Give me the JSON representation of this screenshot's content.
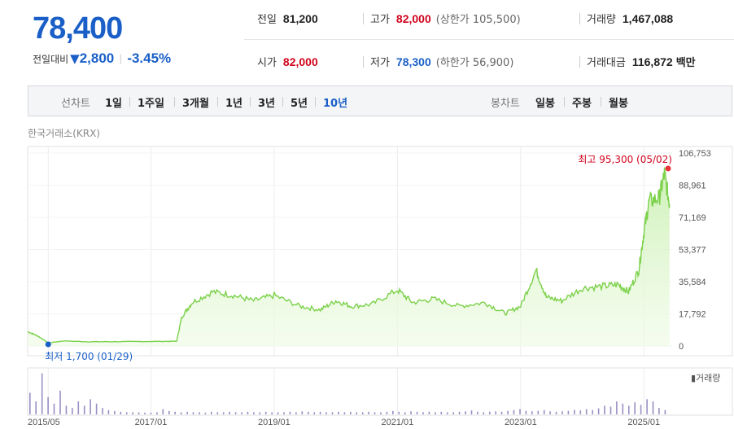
{
  "quote": {
    "price": "78,400",
    "change_label": "전일대비",
    "change_icon": "down-triangle-icon",
    "change_value": "2,800",
    "change_pct": "-3.45%"
  },
  "info": {
    "prev_close_label": "전일",
    "prev_close": "81,200",
    "high_label": "고가",
    "high": "82,000",
    "upper_limit_label": "(상한가 105,500)",
    "volume_label": "거래량",
    "volume": "1,467,088",
    "open_label": "시가",
    "open": "82,000",
    "low_label": "저가",
    "low": "78,300",
    "lower_limit_label": "(하한가 56,900)",
    "trade_value_label": "거래대금",
    "trade_value": "116,872",
    "trade_value_unit": "백만"
  },
  "toolbar": {
    "line_chart_label": "선차트",
    "periods": [
      "1일",
      "1주일",
      "3개월",
      "1년",
      "3년",
      "5년",
      "10년"
    ],
    "active_period": "10년",
    "candle_label": "봉차트",
    "candles": [
      "일봉",
      "주봉",
      "월봉"
    ]
  },
  "exchange": "한국거래소(KRX)",
  "colors": {
    "accent": "#1a5fc8",
    "down": "#1a5fc8",
    "up": "#d0021b",
    "line": "#7bd14a",
    "volume": "#9b8ec4"
  },
  "chart_data": {
    "type": "area",
    "x": [
      "2015-01",
      "2015-03",
      "2015-05",
      "2015-08",
      "2016-01",
      "2016-06",
      "2017-01",
      "2017-06",
      "2017-07",
      "2017-09",
      "2018-01",
      "2018-05",
      "2018-09",
      "2019-01",
      "2019-06",
      "2019-10",
      "2020-01",
      "2020-04",
      "2020-08",
      "2021-01",
      "2021-04",
      "2021-08",
      "2022-01",
      "2022-06",
      "2022-10",
      "2023-01",
      "2023-04",
      "2023-06",
      "2023-09",
      "2024-01",
      "2024-05",
      "2024-08",
      "2024-10",
      "2024-12",
      "2025-01",
      "2025-02",
      "2025-04",
      "2025-05",
      "2025-06"
    ],
    "series": [
      {
        "values": [
          8000,
          5500,
          1700,
          2800,
          2300,
          2400,
          2500,
          2600,
          16000,
          24000,
          30000,
          28000,
          25000,
          28000,
          22000,
          20000,
          25000,
          22000,
          23000,
          31000,
          24000,
          26000,
          22000,
          24000,
          18000,
          22000,
          42000,
          27000,
          25000,
          32000,
          33000,
          34000,
          30000,
          42000,
          63000,
          80000,
          82000,
          95300,
          78400
        ]
      }
    ],
    "ylim": [
      0,
      106753
    ],
    "y_ticks": [
      "106,753",
      "88,961",
      "71,169",
      "53,377",
      "35,584",
      "17,792",
      "0"
    ],
    "x_ticks": [
      "2015/05",
      "2017/01",
      "2019/01",
      "2021/01",
      "2023/01",
      "2025/01"
    ],
    "annotations": {
      "high_label": "최고 95,300 (05/02)",
      "low_label": "최저 1,700 (01/29)"
    },
    "volume": {
      "legend": "거래량",
      "values": [
        0.5,
        0.3,
        0.95,
        0.4,
        0.25,
        0.55,
        0.2,
        0.15,
        0.3,
        0.2,
        0.35,
        0.25,
        0.15,
        0.1,
        0.08,
        0.06,
        0.05,
        0.05,
        0.05,
        0.04,
        0.04,
        0.05,
        0.12,
        0.08,
        0.06,
        0.05,
        0.06,
        0.05,
        0.05,
        0.04,
        0.06,
        0.05,
        0.05,
        0.06,
        0.05,
        0.05,
        0.06,
        0.05,
        0.05,
        0.06,
        0.05,
        0.05,
        0.05,
        0.06,
        0.05,
        0.07,
        0.06,
        0.05,
        0.06,
        0.05,
        0.05,
        0.06,
        0.05,
        0.06,
        0.05,
        0.05,
        0.06,
        0.05,
        0.05,
        0.06,
        0.08,
        0.06,
        0.05,
        0.07,
        0.06,
        0.05,
        0.06,
        0.05,
        0.06,
        0.05,
        0.05,
        0.06,
        0.07,
        0.09,
        0.06,
        0.05,
        0.06,
        0.07,
        0.06,
        0.08,
        0.1,
        0.12,
        0.08,
        0.07,
        0.08,
        0.1,
        0.07,
        0.06,
        0.07,
        0.08,
        0.1,
        0.09,
        0.12,
        0.1,
        0.14,
        0.2,
        0.18,
        0.3,
        0.25,
        0.2,
        0.28,
        0.22,
        0.35,
        0.3,
        0.15,
        0.1
      ],
      "grid": true
    },
    "grid": true
  }
}
